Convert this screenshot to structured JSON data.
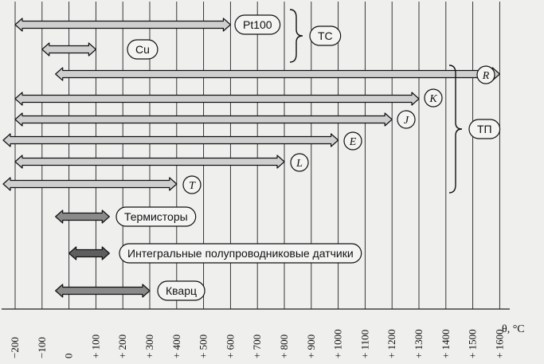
{
  "unit_label": "θ, °C",
  "axis": {
    "min": -200,
    "max": 1600,
    "ticks": [
      {
        "value": -200,
        "label": "−200"
      },
      {
        "value": -100,
        "label": "−100"
      },
      {
        "value": 0,
        "label": "0"
      },
      {
        "value": 100,
        "label": "+ 100"
      },
      {
        "value": 200,
        "label": "+ 200"
      },
      {
        "value": 300,
        "label": "+ 300"
      },
      {
        "value": 400,
        "label": "+ 400"
      },
      {
        "value": 500,
        "label": "+ 500"
      },
      {
        "value": 600,
        "label": "+ 600"
      },
      {
        "value": 700,
        "label": "+ 700"
      },
      {
        "value": 800,
        "label": "+ 800"
      },
      {
        "value": 900,
        "label": "+ 900"
      },
      {
        "value": 1000,
        "label": "+ 1000"
      },
      {
        "value": 1100,
        "label": "+ 1100"
      },
      {
        "value": 1200,
        "label": "+ 1200"
      },
      {
        "value": 1300,
        "label": "+ 1300"
      },
      {
        "value": 1400,
        "label": "+ 1400"
      },
      {
        "value": 1500,
        "label": "+ 1500"
      },
      {
        "value": 1600,
        "label": "+ 1600"
      }
    ]
  },
  "sensors": [
    {
      "id": "pt100",
      "label": "Pt100",
      "shape": "pill",
      "from": -200,
      "to": 600,
      "style": "light"
    },
    {
      "id": "cu",
      "label": "Cu",
      "shape": "pill",
      "from": -100,
      "to": 100,
      "style": "light"
    },
    {
      "id": "r",
      "label": "R",
      "shape": "circle",
      "from": -50,
      "to": 1600,
      "style": "light"
    },
    {
      "id": "k",
      "label": "K",
      "shape": "circle",
      "from": -200,
      "to": 1300,
      "style": "light"
    },
    {
      "id": "j",
      "label": "J",
      "shape": "circle",
      "from": -200,
      "to": 1200,
      "style": "light"
    },
    {
      "id": "e",
      "label": "E",
      "shape": "circle",
      "from": -250,
      "to": 1000,
      "style": "light"
    },
    {
      "id": "l",
      "label": "L",
      "shape": "circle",
      "from": -200,
      "to": 800,
      "style": "light"
    },
    {
      "id": "t",
      "label": "T",
      "shape": "circle",
      "from": -250,
      "to": 400,
      "style": "light"
    },
    {
      "id": "thermistors",
      "label": "Термисторы",
      "shape": "pill",
      "from": -50,
      "to": 150,
      "style": "dark"
    },
    {
      "id": "integrated",
      "label": "Интегральные полупроводниковые датчики",
      "shape": "pill",
      "from": 0,
      "to": 150,
      "style": "darker"
    },
    {
      "id": "quartz",
      "label": "Кварц",
      "shape": "pill",
      "from": -50,
      "to": 300,
      "style": "dark"
    }
  ],
  "groups": [
    {
      "id": "tc",
      "label": "ТС",
      "members": [
        "Pt100",
        "Cu"
      ]
    },
    {
      "id": "tp",
      "label": "ТП",
      "members": [
        "R",
        "K",
        "J",
        "E",
        "L",
        "T"
      ]
    }
  ],
  "colors": {
    "background": "#efefee",
    "grid": "#222222",
    "arrow_light": "#cfcfcf",
    "arrow_dark": "#8a8a8a",
    "arrow_darker": "#5e5e5e",
    "outline": "#111111"
  }
}
